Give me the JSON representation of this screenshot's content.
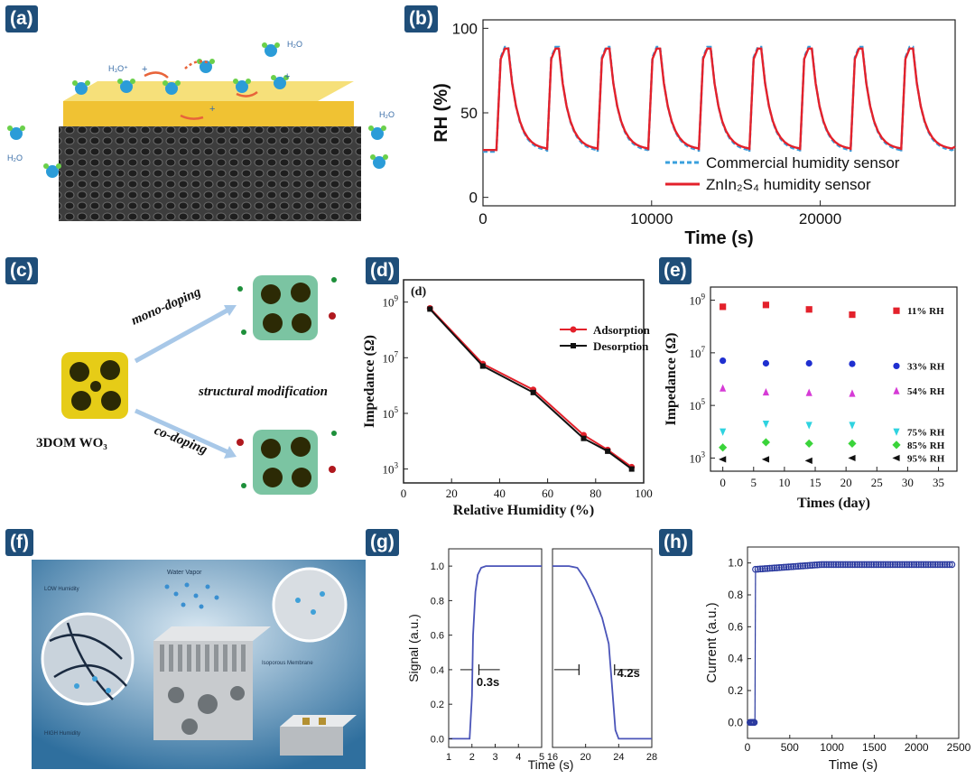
{
  "panels": {
    "a": {
      "tag": "(a)",
      "labels": {
        "h3o": "H₃O⁺",
        "h2o_top": "H₂O",
        "h2o_right": "H₂O",
        "h2o_left": "H₂O",
        "plus1": "+",
        "plus2": "+",
        "plus3": "+"
      }
    },
    "b": {
      "tag": "(b)"
    },
    "c": {
      "tag": "(c)",
      "labels": {
        "mono": "mono-doping",
        "co": "co-doping",
        "struct": "structural modification",
        "base": "3DOM WO₃"
      }
    },
    "d": {
      "tag": "(d)"
    },
    "e": {
      "tag": "(e)"
    },
    "f": {
      "tag": "(f)",
      "labels": {
        "vapor": "Water Vapor",
        "low": "LOW Humidity",
        "high": "HIGH Humidity",
        "membrane": "Isoporous Membrane"
      }
    },
    "g": {
      "tag": "(g)"
    },
    "h": {
      "tag": "(h)"
    }
  },
  "chart_data": [
    {
      "id": "b",
      "type": "line",
      "xlabel": "Time (s)",
      "ylabel": "RH (%)",
      "xlim": [
        0,
        28000
      ],
      "ylim": [
        -5,
        105
      ],
      "xticks": [
        0,
        10000,
        20000
      ],
      "yticks": [
        0,
        50,
        100
      ],
      "legend": [
        "Commercial humidity sensor",
        "ZnIn₂S₄ humidity sensor"
      ],
      "series": [
        {
          "name": "Commercial humidity sensor",
          "color": "#3aa0dd",
          "style": "dashed",
          "cycles": 9,
          "period": 3000,
          "low": 27,
          "high": 89,
          "first_start": 800
        },
        {
          "name": "ZnIn₂S₄ humidity sensor",
          "color": "#e3212b",
          "style": "solid",
          "cycles": 9,
          "period": 3000,
          "low": 28,
          "high": 88,
          "first_start": 800
        }
      ]
    },
    {
      "id": "d",
      "type": "line",
      "inner_label": "(d)",
      "xlabel": "Relative Humidity (%)",
      "ylabel": "Impedance (Ω)",
      "xlim": [
        0,
        100
      ],
      "ylog": [
        2.5,
        9.8
      ],
      "xticks": [
        0,
        20,
        40,
        60,
        80,
        100
      ],
      "ytick_exps": [
        3,
        5,
        7,
        9
      ],
      "series": [
        {
          "name": "Adsorption",
          "color": "#e3212b",
          "x": [
            11,
            33,
            54,
            75,
            85,
            95
          ],
          "log10y": [
            8.78,
            6.78,
            5.85,
            4.22,
            3.69,
            3.07
          ]
        },
        {
          "name": "Desorption",
          "color": "#111111",
          "x": [
            11,
            33,
            54,
            75,
            85,
            95
          ],
          "log10y": [
            8.75,
            6.7,
            5.75,
            4.1,
            3.64,
            3.0
          ]
        }
      ]
    },
    {
      "id": "e",
      "type": "scatter",
      "xlabel": "Times (day)",
      "ylabel": "Impedance (Ω)",
      "xlim": [
        -2,
        38
      ],
      "ylog": [
        2.5,
        9.5
      ],
      "xticks": [
        0,
        5,
        10,
        15,
        20,
        25,
        30,
        35
      ],
      "ytick_exps": [
        3,
        5,
        7,
        9
      ],
      "series": [
        {
          "name": "11% RH",
          "marker": "square",
          "color": "#e3212b",
          "x": [
            0,
            7,
            14,
            21
          ],
          "log10y": [
            8.75,
            8.82,
            8.65,
            8.45
          ]
        },
        {
          "name": "33% RH",
          "marker": "circle",
          "color": "#1f2fd0",
          "x": [
            0,
            7,
            14,
            21
          ],
          "log10y": [
            6.7,
            6.6,
            6.6,
            6.58
          ]
        },
        {
          "name": "54% RH",
          "marker": "triangle-up",
          "color": "#d63bd6",
          "x": [
            0,
            7,
            14,
            21
          ],
          "log10y": [
            5.65,
            5.5,
            5.48,
            5.45
          ]
        },
        {
          "name": "75% RH",
          "marker": "triangle-down",
          "color": "#2fd3e0",
          "x": [
            0,
            7,
            14,
            21
          ],
          "log10y": [
            4.0,
            4.3,
            4.25,
            4.25
          ]
        },
        {
          "name": "85% RH",
          "marker": "diamond",
          "color": "#3ad43a",
          "x": [
            0,
            7,
            14,
            21
          ],
          "log10y": [
            3.4,
            3.6,
            3.55,
            3.55
          ]
        },
        {
          "name": "95% RH",
          "marker": "triangle-left",
          "color": "#111111",
          "x": [
            0,
            7,
            14,
            21
          ],
          "log10y": [
            2.95,
            2.95,
            2.9,
            3.0
          ]
        }
      ]
    },
    {
      "id": "g",
      "type": "line",
      "xlabel": "Time (s)",
      "ylabel": "Signal (a.u.)",
      "ylim": [
        -0.05,
        1.1
      ],
      "yticks": [
        0.0,
        0.2,
        0.4,
        0.6,
        0.8,
        1.0
      ],
      "left": {
        "xlim": [
          1,
          5
        ],
        "xticks": [
          1,
          2,
          3,
          4,
          5
        ],
        "x": [
          1,
          1.9,
          2.0,
          2.05,
          2.15,
          2.25,
          2.4,
          2.6,
          3,
          4,
          5
        ],
        "y": [
          0,
          0,
          0.25,
          0.6,
          0.85,
          0.95,
          0.99,
          1.0,
          1.0,
          1.0,
          1.0
        ],
        "annotation": "0.3s"
      },
      "right": {
        "xlim": [
          16,
          28
        ],
        "xticks": [
          16,
          20,
          24,
          28
        ],
        "x": [
          16,
          18,
          19,
          20,
          21,
          22,
          22.8,
          23.2,
          23.6,
          24,
          26,
          28
        ],
        "y": [
          1.0,
          1.0,
          0.99,
          0.92,
          0.82,
          0.7,
          0.55,
          0.3,
          0.05,
          0,
          0,
          0
        ],
        "annotation": "4.2s"
      },
      "color": "#4a54b8"
    },
    {
      "id": "h",
      "type": "scatter",
      "xlabel": "Time (s)",
      "ylabel": "Current (a.u.)",
      "xlim": [
        0,
        2500
      ],
      "ylim": [
        -0.1,
        1.1
      ],
      "xticks": [
        0,
        500,
        1000,
        1500,
        2000,
        2500
      ],
      "yticks": [
        0.0,
        0.2,
        0.4,
        0.6,
        0.8,
        1.0
      ],
      "low": {
        "x0": 30,
        "x1": 80,
        "y": 0.0
      },
      "high": {
        "x0": 95,
        "x1": 2430,
        "y_start": 0.96,
        "y_end": 0.99
      },
      "color": "#2b3a9f"
    }
  ]
}
